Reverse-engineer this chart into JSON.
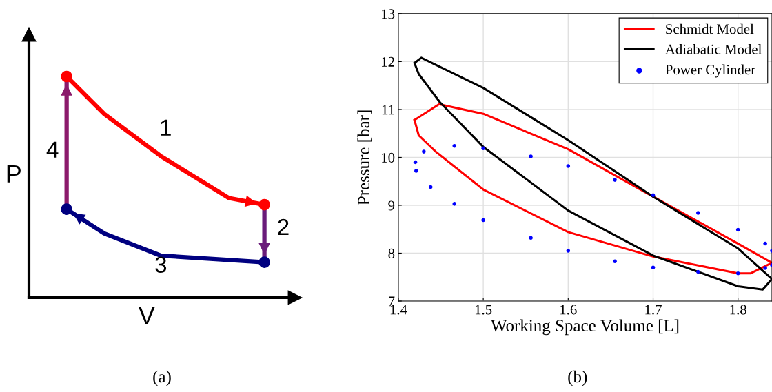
{
  "chart_data": [
    {
      "type": "other",
      "title": "(a)",
      "xlabel": "V",
      "ylabel": "P",
      "annotations": [
        "1",
        "2",
        "3",
        "4"
      ]
    },
    {
      "type": "line",
      "title": "(b)",
      "xlabel": "Working Space Volume [L]",
      "ylabel": "Pressure [bar]",
      "xlim": [
        1.4,
        1.84
      ],
      "ylim": [
        7,
        13
      ],
      "xticks": [
        1.4,
        1.5,
        1.6,
        1.7,
        1.8
      ],
      "yticks": [
        7,
        8,
        9,
        10,
        11,
        12,
        13
      ],
      "grid": true,
      "legend": "top right",
      "series": [
        {
          "name": "Schmidt Model",
          "color": "#ff0000",
          "x": [
            1.419,
            1.448,
            1.5,
            1.6,
            1.7,
            1.8,
            1.84
          ],
          "values": [
            10.78,
            11.11,
            10.91,
            10.17,
            9.18,
            8.2,
            7.8
          ]
        },
        {
          "color": "#ff0000",
          "x": [
            1.419,
            1.424,
            1.444,
            1.5,
            1.6,
            1.7,
            1.8,
            1.815,
            1.84
          ],
          "values": [
            10.78,
            10.46,
            10.12,
            9.33,
            8.44,
            7.93,
            7.58,
            7.58,
            7.8
          ]
        },
        {
          "name": "Adiabatic Model",
          "color": "#000000",
          "x": [
            1.419,
            1.427,
            1.5,
            1.6,
            1.7,
            1.8,
            1.84
          ],
          "values": [
            11.97,
            12.08,
            11.45,
            10.36,
            9.18,
            8.1,
            7.46
          ]
        },
        {
          "color": "#000000",
          "x": [
            1.419,
            1.424,
            1.449,
            1.5,
            1.6,
            1.7,
            1.8,
            1.829,
            1.84
          ],
          "values": [
            11.97,
            11.74,
            11.15,
            10.22,
            8.89,
            7.95,
            7.31,
            7.24,
            7.46
          ]
        },
        {
          "name": "Power Cylinder",
          "type": "scatter",
          "marker": "circle",
          "color": "#0000ff",
          "x": [
            1.42,
            1.43,
            1.466,
            1.5,
            1.556,
            1.6,
            1.655,
            1.7,
            1.753,
            1.8,
            1.832,
            1.84,
            1.84,
            1.832,
            1.8,
            1.753,
            1.7,
            1.655,
            1.6,
            1.556,
            1.5,
            1.466,
            1.438,
            1.421
          ],
          "values": [
            9.9,
            10.12,
            10.24,
            10.19,
            10.02,
            9.82,
            9.53,
            9.21,
            8.84,
            8.49,
            8.2,
            8.05,
            7.75,
            7.69,
            7.58,
            7.61,
            7.7,
            7.83,
            8.05,
            8.32,
            8.69,
            9.03,
            9.38,
            9.72
          ]
        }
      ]
    }
  ]
}
